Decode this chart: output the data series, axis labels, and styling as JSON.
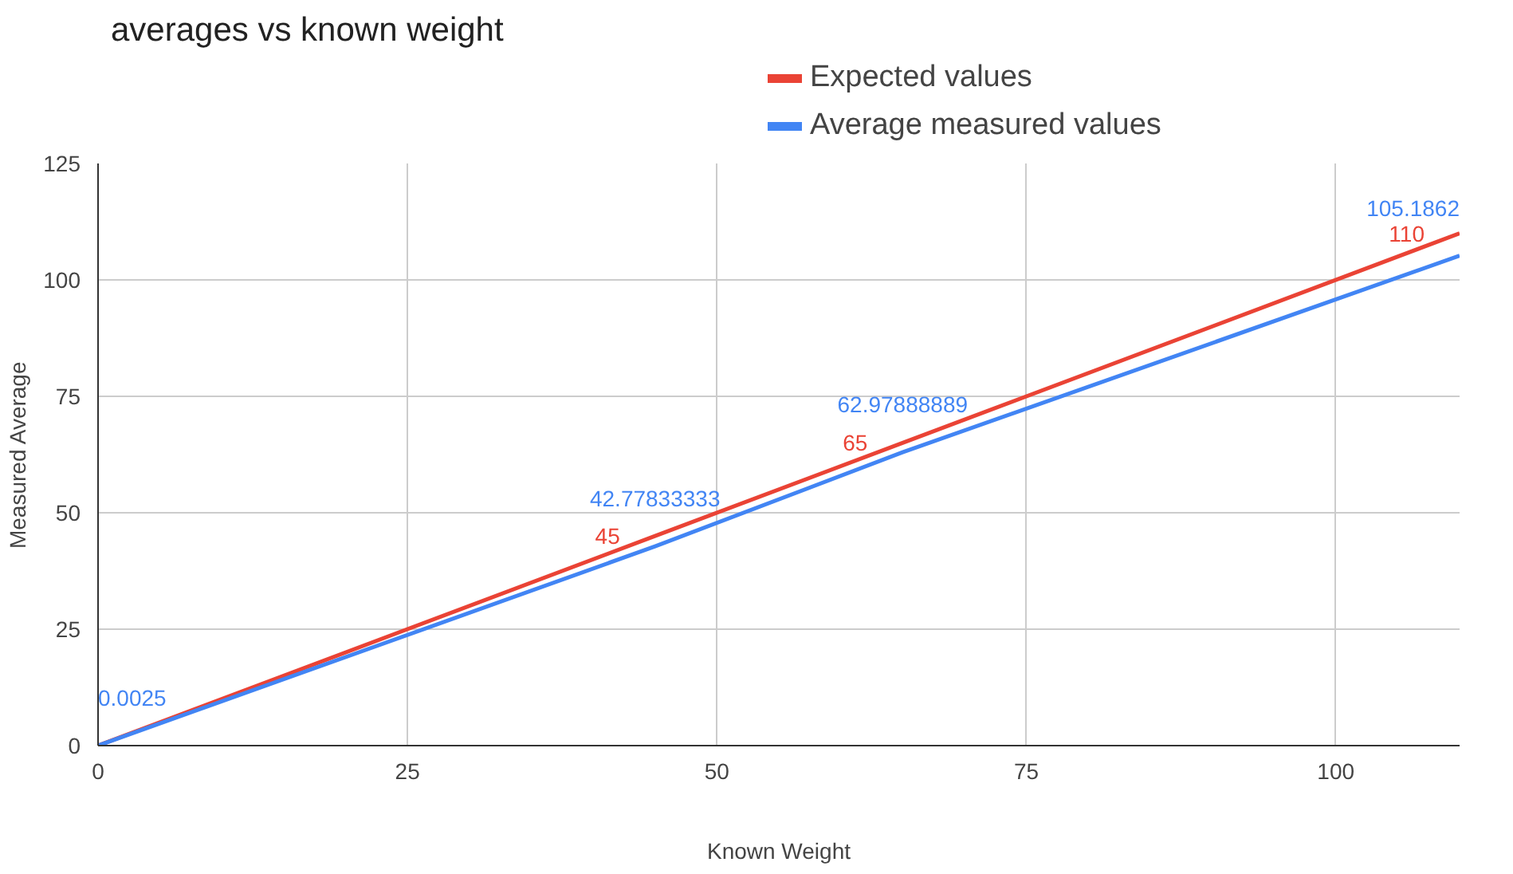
{
  "chart_data": {
    "type": "line",
    "title": "averages vs known weight",
    "xlabel": "Known Weight",
    "ylabel": "Measured Average",
    "series": [
      {
        "name": "Expected values",
        "color": "#ea4335",
        "x": [
          0,
          45,
          65,
          110
        ],
        "values": [
          0,
          45,
          65,
          110
        ],
        "value_labels": [
          null,
          "45",
          "65",
          "110"
        ]
      },
      {
        "name": "Average measured values",
        "color": "#4285f4",
        "x": [
          0,
          45,
          65,
          110
        ],
        "values": [
          0.0025,
          42.77833333,
          62.97888889,
          105.1862
        ],
        "value_labels": [
          "0.0025",
          "42.77833333",
          "62.97888889",
          "105.1862"
        ]
      }
    ],
    "xlim": [
      0,
      110
    ],
    "xticks": [
      0,
      25,
      50,
      75,
      100
    ],
    "ylim": [
      0,
      125
    ],
    "yticks": [
      0,
      25,
      50,
      75,
      100,
      125
    ],
    "grid": true,
    "legend": "top",
    "marker": "none"
  }
}
